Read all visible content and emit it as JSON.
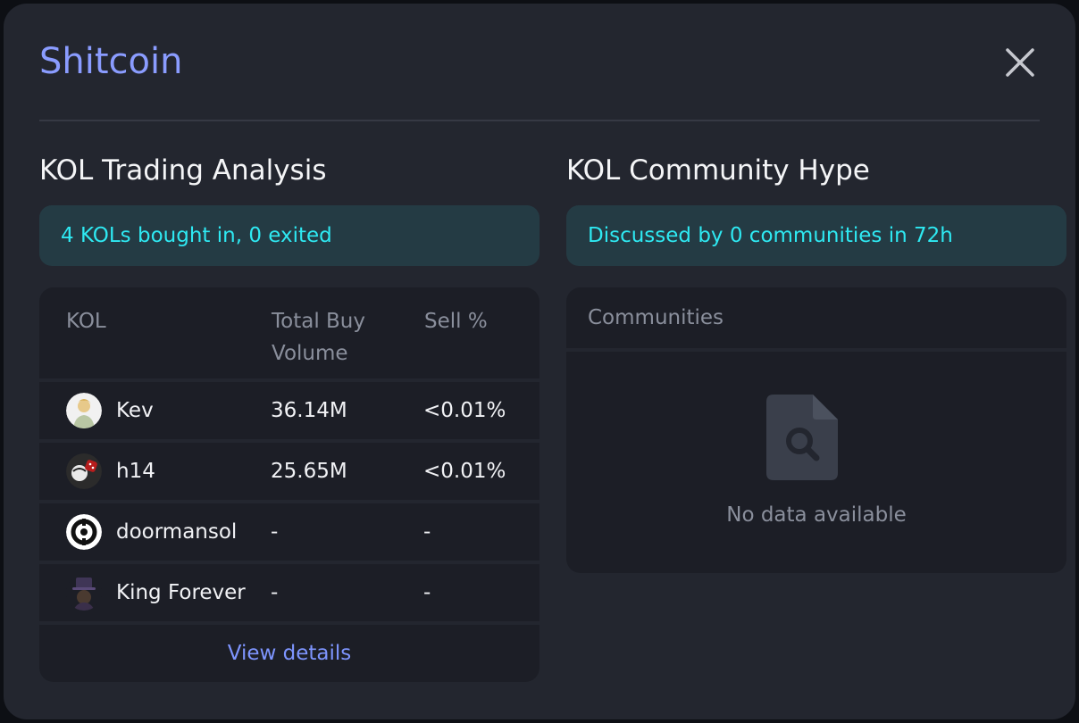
{
  "modal": {
    "title": "Shitcoin",
    "close_icon": "close-icon"
  },
  "trading": {
    "title": "KOL Trading Analysis",
    "summary": "4 KOLs bought in, 0 exited",
    "columns": {
      "kol": "KOL",
      "volume_line1": "Total Buy",
      "volume_line2": "Volume",
      "sell": "Sell %"
    },
    "rows": [
      {
        "name": "Kev",
        "volume": "36.14M",
        "sell": "<0.01%",
        "avatar": "avatar-illustrated-character"
      },
      {
        "name": "h14",
        "volume": "25.65M",
        "sell": "<0.01%",
        "avatar": "avatar-masked-figure"
      },
      {
        "name": "doormansol",
        "volume": "-",
        "sell": "-",
        "avatar": "avatar-logo-mark"
      },
      {
        "name": "King Forever",
        "volume": "-",
        "sell": "-",
        "avatar": "avatar-hatted-figure"
      }
    ],
    "view_details": "View details"
  },
  "hype": {
    "title": "KOL Community Hype",
    "summary": "Discussed by 0 communities in 72h",
    "column": "Communities",
    "empty_icon": "document-search-icon",
    "empty_text": "No data available"
  },
  "colors": {
    "accent": "#8a9cff",
    "banner_text": "#2ee9f2",
    "banner_bg": "#243b44",
    "panel_bg": "#1c1e26",
    "modal_bg": "#23262f"
  }
}
